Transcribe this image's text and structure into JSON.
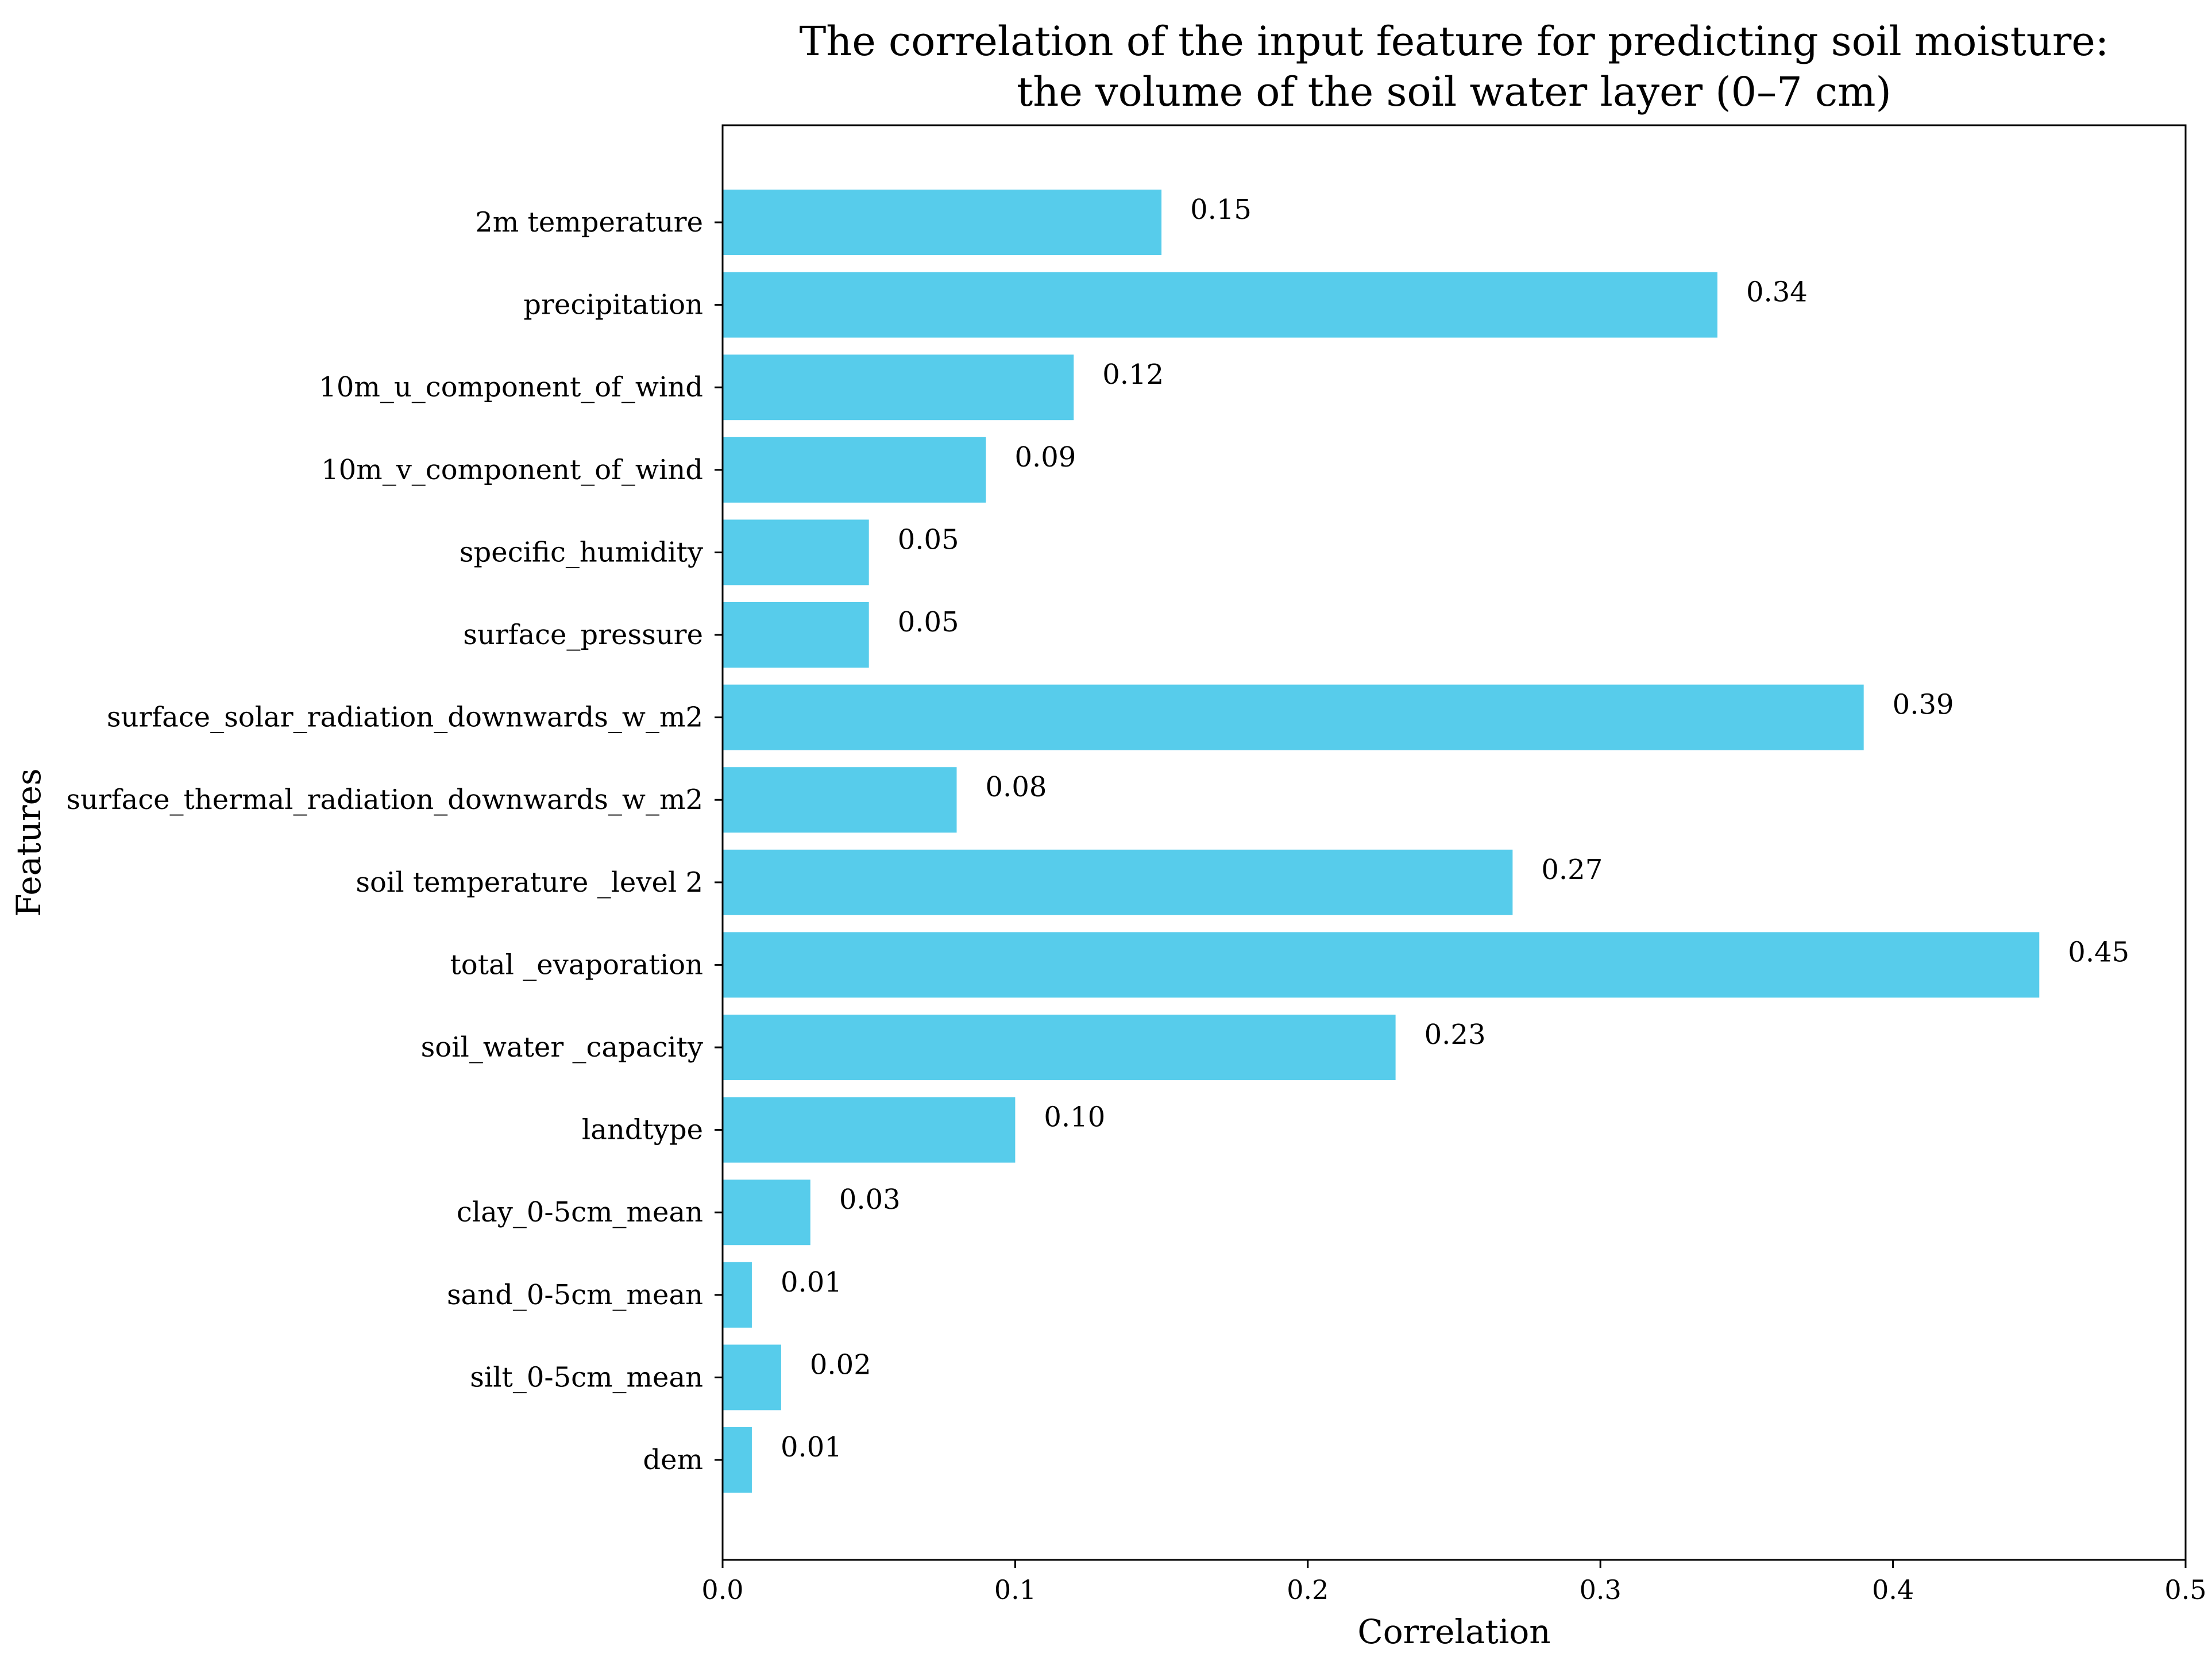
{
  "chart_data": {
    "type": "bar",
    "orientation": "horizontal",
    "title": [
      "The correlation of the input feature for predicting soil moisture:",
      "the volume of the soil water layer (0–7 cm)"
    ],
    "xlabel": "Correlation",
    "ylabel": "Features",
    "xlim": [
      0.0,
      0.5
    ],
    "xticks": [
      0.0,
      0.1,
      0.2,
      0.3,
      0.4,
      0.5
    ],
    "xtick_labels": [
      "0.0",
      "0.1",
      "0.2",
      "0.3",
      "0.4",
      "0.5"
    ],
    "categories": [
      "2m temperature",
      "precipitation",
      "10m_u_component_of_wind",
      "10m_v_component_of_wind",
      "specific_humidity",
      "surface_pressure",
      "surface_solar_radiation_downwards_w_m2",
      "surface_thermal_radiation_downwards_w_m2",
      "soil temperature _level 2",
      "total _evaporation",
      "soil_water _capacity",
      "landtype",
      "clay_0-5cm_mean",
      "sand_0-5cm_mean",
      "silt_0-5cm_mean",
      "dem"
    ],
    "values": [
      0.15,
      0.34,
      0.12,
      0.09,
      0.05,
      0.05,
      0.39,
      0.08,
      0.27,
      0.45,
      0.23,
      0.1,
      0.03,
      0.01,
      0.02,
      0.01
    ],
    "value_labels": [
      "0.15",
      "0.34",
      "0.12",
      "0.09",
      "0.05",
      "0.05",
      "0.39",
      "0.08",
      "0.27",
      "0.45",
      "0.23",
      "0.10",
      "0.03",
      "0.01",
      "0.02",
      "0.01"
    ],
    "bar_color": "#57cceb",
    "grid": false
  }
}
